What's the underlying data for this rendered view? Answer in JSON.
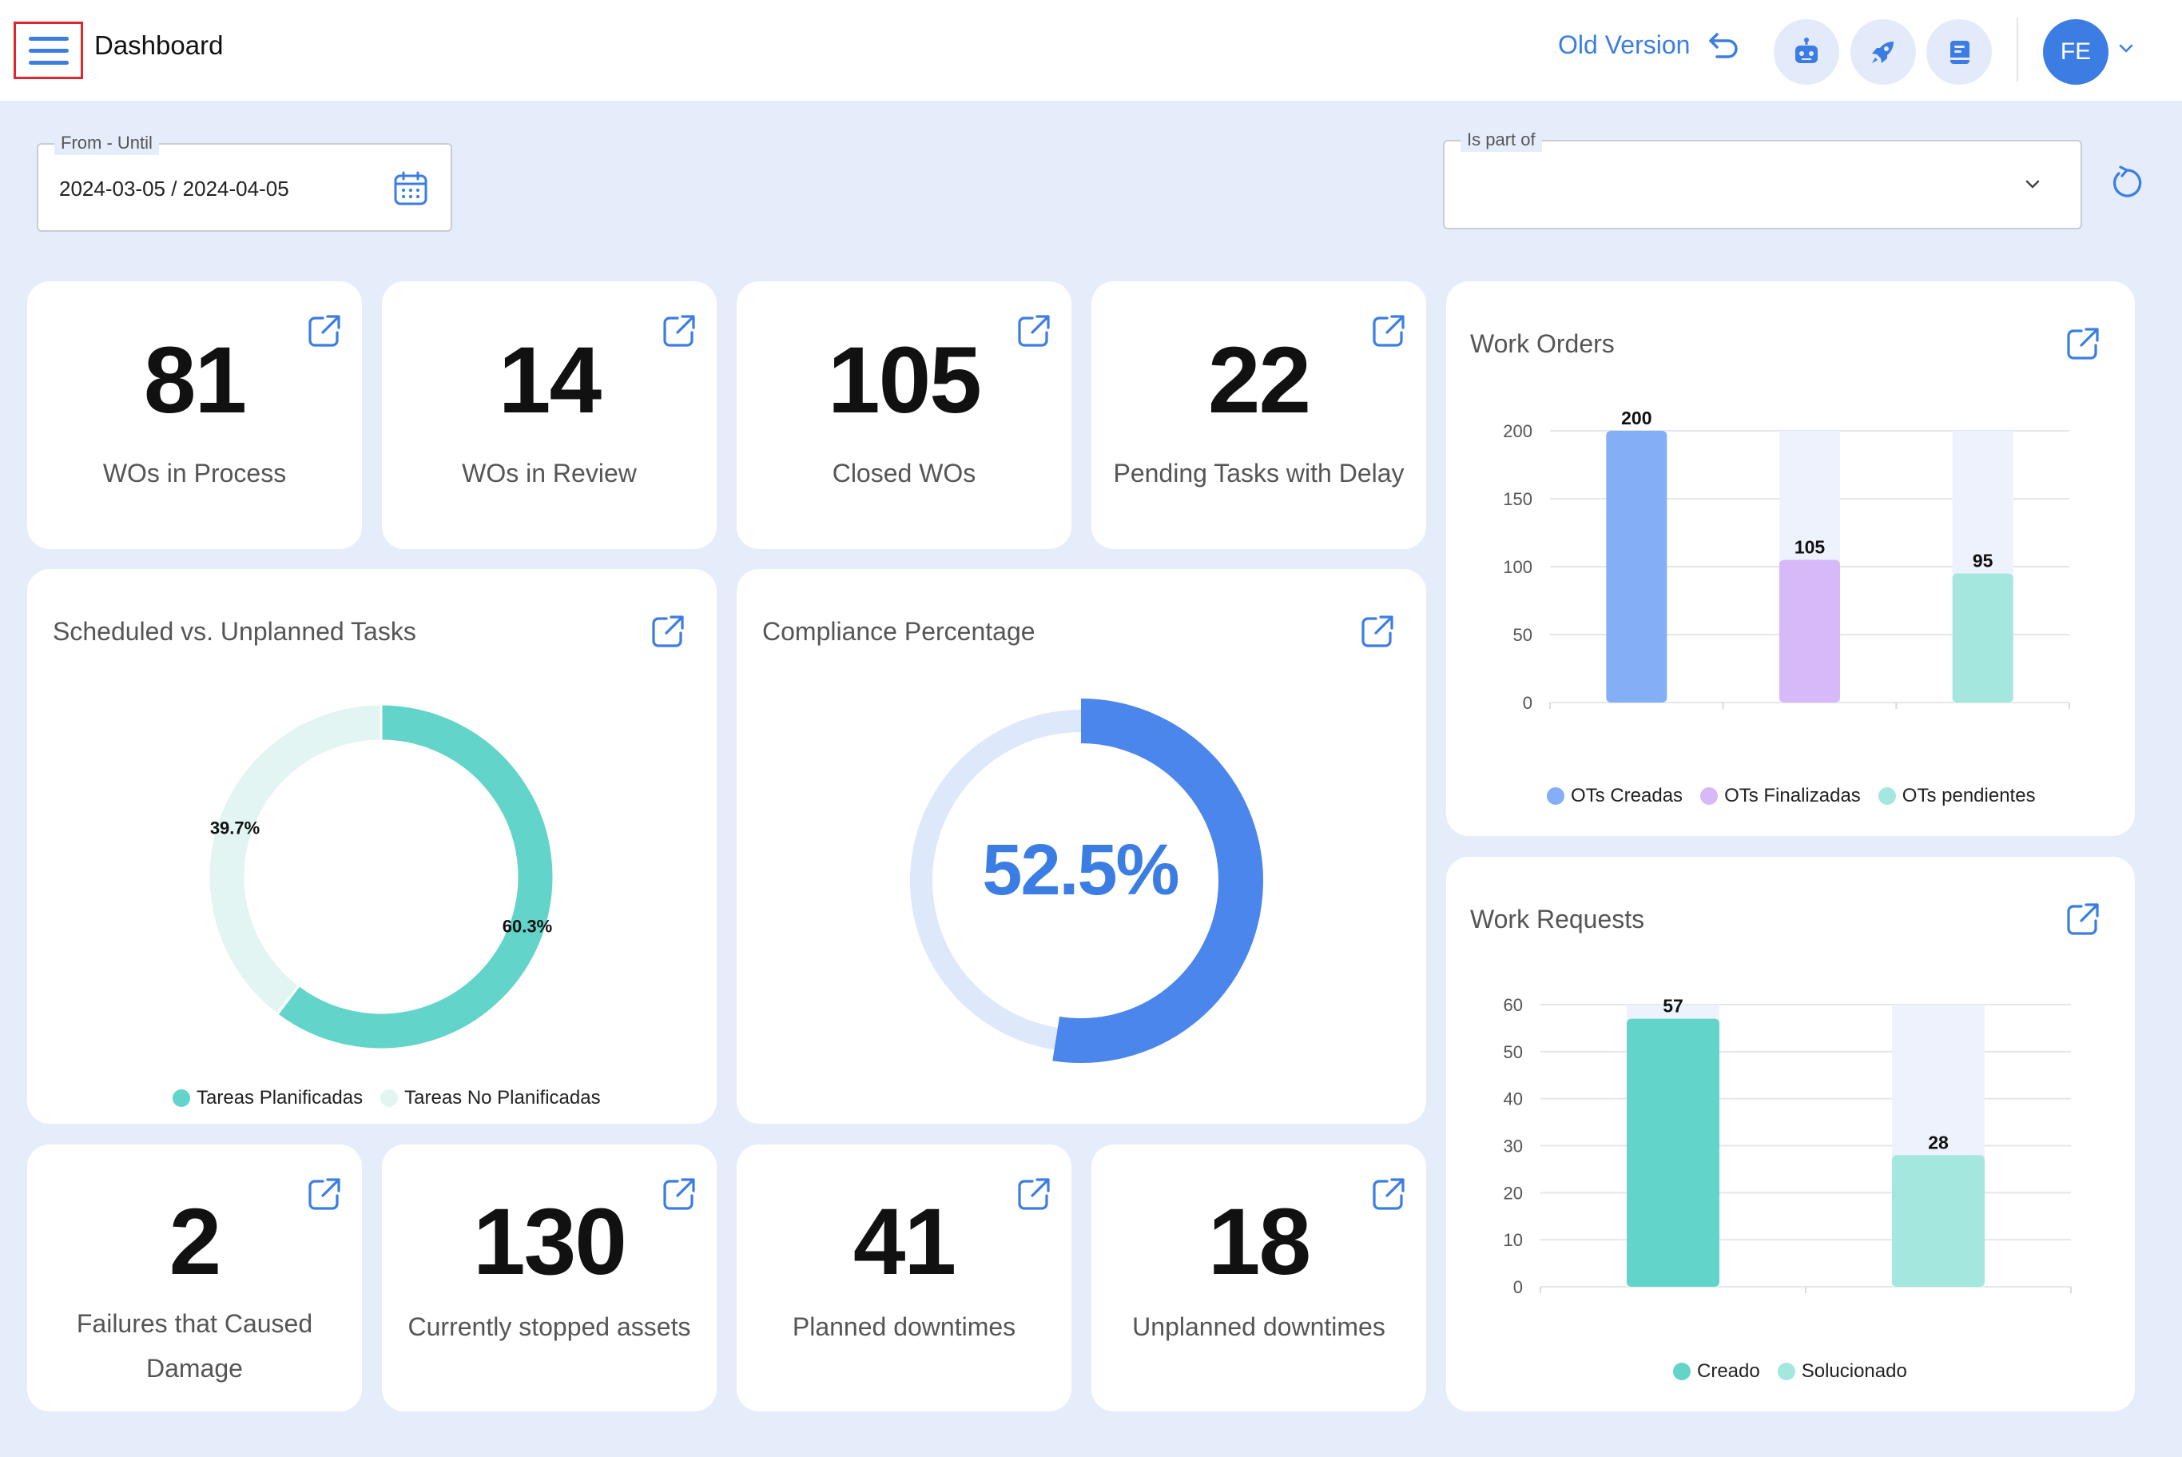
{
  "header": {
    "title": "Dashboard",
    "old_version_label": "Old Version",
    "avatar_initials": "FE"
  },
  "filters": {
    "date_label": "From - Until",
    "date_value": "2024-03-05 / 2024-04-05",
    "is_part_of_label": "Is part of",
    "is_part_of_value": ""
  },
  "kpis": {
    "wos_in_process": {
      "value": "81",
      "label": "WOs in Process"
    },
    "wos_in_review": {
      "value": "14",
      "label": "WOs in Review"
    },
    "closed_wos": {
      "value": "105",
      "label": "Closed WOs"
    },
    "pending_tasks_delay": {
      "value": "22",
      "label": "Pending Tasks with Delay"
    },
    "failures_damage": {
      "value": "2",
      "label": "Failures that Caused Damage"
    },
    "stopped_assets": {
      "value": "130",
      "label": "Currently stopped assets"
    },
    "planned_downtimes": {
      "value": "41",
      "label": "Planned downtimes"
    },
    "unplanned_downtimes": {
      "value": "18",
      "label": "Unplanned downtimes"
    }
  },
  "scheduled_card": {
    "title": "Scheduled vs. Unplanned Tasks"
  },
  "compliance_card": {
    "title": "Compliance Percentage",
    "value_label": "52.5%"
  },
  "work_orders_card": {
    "title": "Work Orders"
  },
  "work_requests_card": {
    "title": "Work Requests"
  },
  "colors": {
    "accent": "#3b7de3",
    "teal": "#62d4c9",
    "teal_light": "#e2f5f3",
    "blue_bar": "#84aff6",
    "purple_bar": "#d7b8f8",
    "mint_bar": "#a3e7de",
    "bar_track": "#eef2fc",
    "compliance_track": "#dde8fb"
  },
  "chart_data": [
    {
      "type": "pie",
      "title": "Scheduled vs. Unplanned Tasks",
      "categories": [
        "Tareas Planificadas",
        "Tareas No Planificadas"
      ],
      "values": [
        60.3,
        39.7
      ],
      "value_labels": [
        "60.3%",
        "39.7%"
      ],
      "colors": [
        "#62d4c9",
        "#e2f5f3"
      ],
      "legend": "bottom"
    },
    {
      "type": "pie",
      "title": "Compliance Percentage",
      "values": [
        52.5
      ],
      "value_labels": [
        "52.5%"
      ],
      "max": 100
    },
    {
      "type": "bar",
      "title": "Work Orders",
      "categories": [
        "OTs Creadas",
        "OTs Finalizadas",
        "OTs pendientes"
      ],
      "values": [
        200,
        105,
        95
      ],
      "colors": [
        "#84aff6",
        "#d7b8f8",
        "#a3e7de"
      ],
      "ylim": [
        0,
        200
      ],
      "yticks": [
        0,
        50,
        100,
        150,
        200
      ],
      "legend": "bottom"
    },
    {
      "type": "bar",
      "title": "Work Requests",
      "categories": [
        "Creado",
        "Solucionado"
      ],
      "values": [
        57,
        28
      ],
      "colors": [
        "#62d4c9",
        "#a3e7de"
      ],
      "ylim": [
        0,
        60
      ],
      "yticks": [
        0,
        10,
        20,
        30,
        40,
        50,
        60
      ],
      "legend": "bottom"
    }
  ]
}
